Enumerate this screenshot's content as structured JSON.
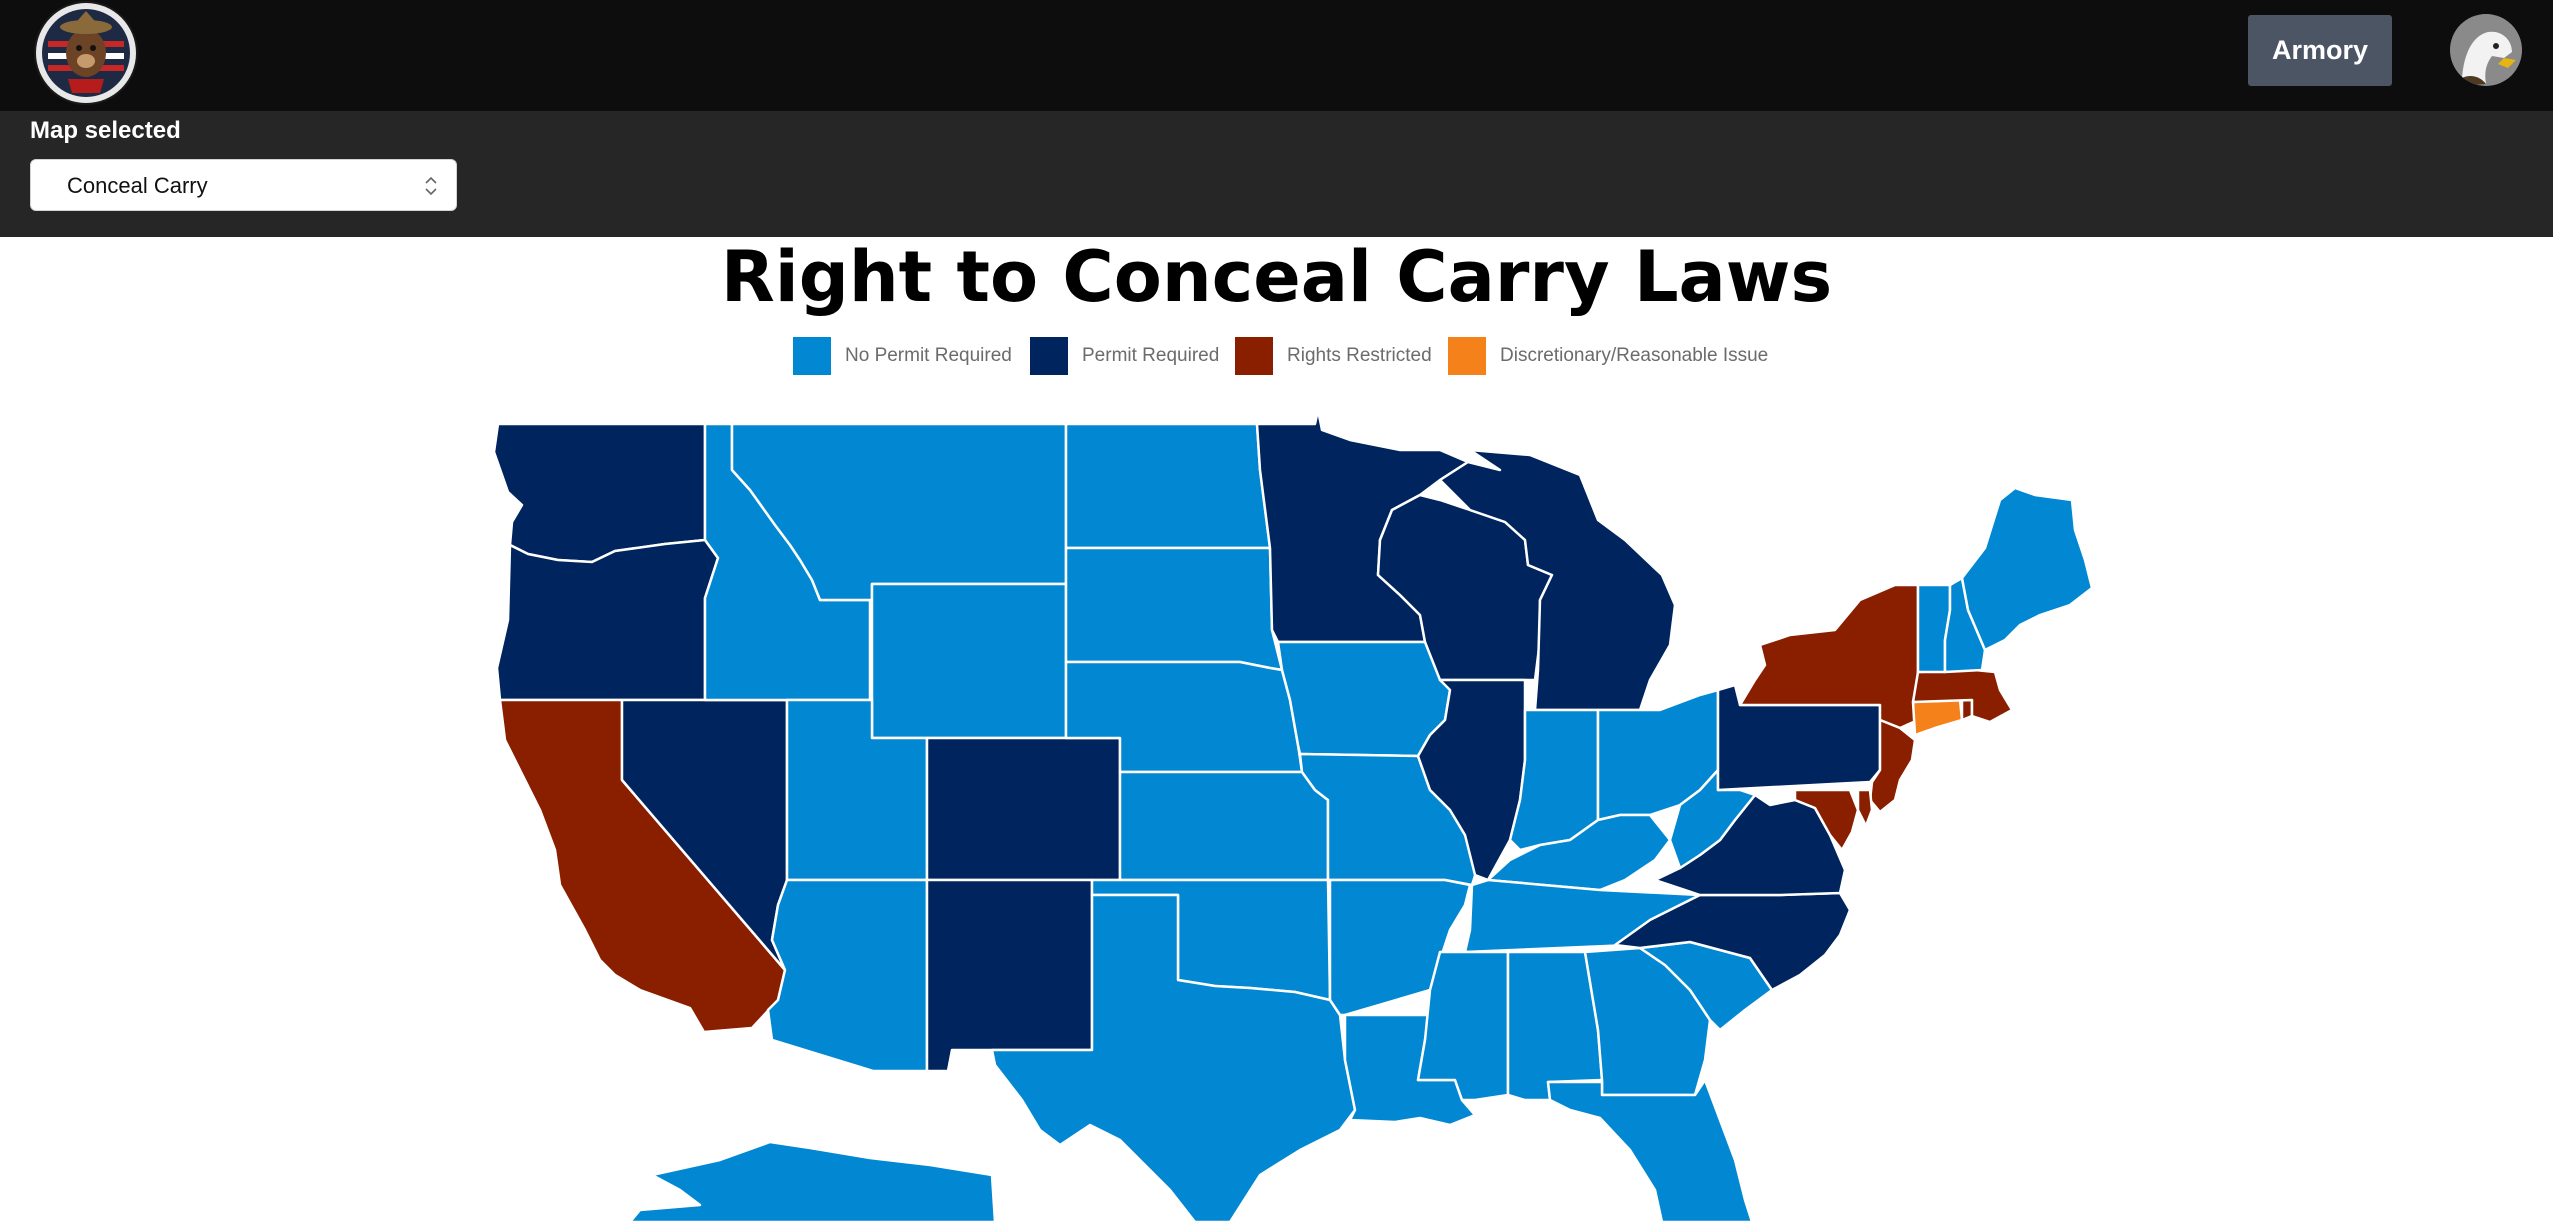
{
  "header": {
    "armory_label": "Armory"
  },
  "map_selector": {
    "label": "Map selected",
    "selected": "Conceal Carry"
  },
  "map": {
    "title": "Right to Conceal Carry Laws",
    "legend": [
      {
        "key": "no_permit",
        "label": "No Permit Required",
        "color": "#0287d2"
      },
      {
        "key": "permit",
        "label": "Permit Required",
        "color": "#00245e"
      },
      {
        "key": "restricted",
        "label": "Rights Restricted",
        "color": "#8a1f00"
      },
      {
        "key": "discretionary",
        "label": "Discretionary/Reasonable Issue",
        "color": "#f5811b"
      }
    ],
    "states": {
      "WA": "permit",
      "OR": "permit",
      "CA": "restricted",
      "NV": "permit",
      "ID": "no_permit",
      "MT": "no_permit",
      "WY": "no_permit",
      "UT": "no_permit",
      "CO": "permit",
      "AZ": "no_permit",
      "NM": "permit",
      "ND": "no_permit",
      "SD": "no_permit",
      "NE": "no_permit",
      "KS": "no_permit",
      "OK": "no_permit",
      "TX": "no_permit",
      "MN": "permit",
      "IA": "no_permit",
      "MO": "no_permit",
      "AR": "no_permit",
      "LA": "no_permit",
      "WI": "permit",
      "IL": "permit",
      "MI": "permit",
      "IN": "no_permit",
      "OH": "no_permit",
      "KY": "no_permit",
      "TN": "no_permit",
      "MS": "no_permit",
      "AL": "no_permit",
      "GA": "no_permit",
      "FL": "no_permit",
      "SC": "no_permit",
      "NC": "permit",
      "VA": "permit",
      "WV": "no_permit",
      "PA": "permit",
      "NY": "restricted",
      "NJ": "restricted",
      "MD": "restricted",
      "DE": "restricted",
      "CT": "discretionary",
      "RI": "restricted",
      "MA": "restricted",
      "VT": "no_permit",
      "NH": "no_permit",
      "ME": "no_permit",
      "AK": "no_permit"
    }
  }
}
